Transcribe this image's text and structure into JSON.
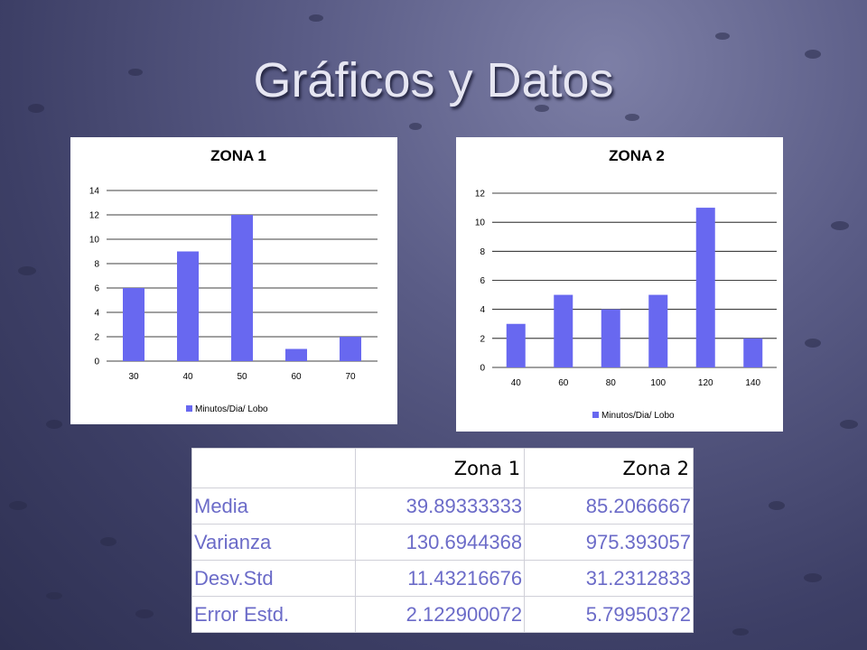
{
  "slide": {
    "title": "Gráficos y Datos"
  },
  "colors": {
    "bar": "#6868f0",
    "grid": "#000000",
    "value_text": "#6b6bc8"
  },
  "chart_data": [
    {
      "type": "bar",
      "title": "ZONA 1",
      "categories": [
        "30",
        "40",
        "50",
        "60",
        "70"
      ],
      "series": [
        {
          "name": "Minutos/Dia/ Lobo",
          "values": [
            6,
            9,
            12,
            1,
            2
          ]
        }
      ],
      "ylim": [
        0,
        14
      ],
      "yticks": [
        "0",
        "2",
        "4",
        "6",
        "8",
        "10",
        "12",
        "14"
      ],
      "grid": true,
      "legend": "bottom"
    },
    {
      "type": "bar",
      "title": "ZONA 2",
      "categories": [
        "40",
        "60",
        "80",
        "100",
        "120",
        "140"
      ],
      "series": [
        {
          "name": "Minutos/Dia/ Lobo",
          "values": [
            3,
            5,
            4,
            5,
            11,
            2
          ]
        }
      ],
      "ylim": [
        0,
        12
      ],
      "yticks": [
        "0",
        "2",
        "4",
        "6",
        "8",
        "10",
        "12"
      ],
      "grid": true,
      "legend": "bottom"
    }
  ],
  "table": {
    "headers": [
      "",
      "Zona 1",
      "Zona 2"
    ],
    "rows": [
      {
        "label": "Media",
        "z1": "39.89333333",
        "z2": "85.2066667"
      },
      {
        "label": "Varianza",
        "z1": "130.6944368",
        "z2": "975.393057"
      },
      {
        "label": "Desv.Std",
        "z1": "11.43216676",
        "z2": "31.2312833"
      },
      {
        "label": "Error Estd.",
        "z1": "2.122900072",
        "z2": "5.79950372"
      }
    ]
  }
}
